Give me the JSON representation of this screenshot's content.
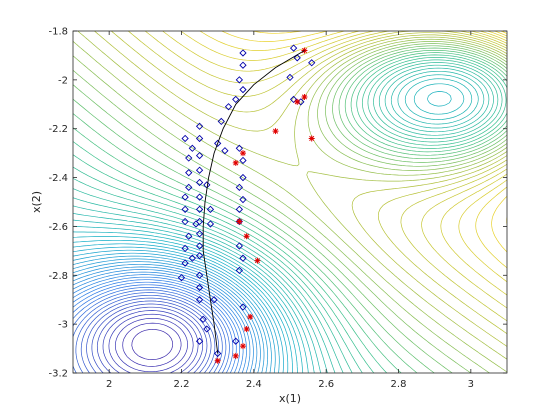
{
  "chart_data": {
    "type": "scatter",
    "title": "",
    "xlabel": "x(1)",
    "ylabel": "x(2)",
    "xlim": [
      1.9,
      3.1
    ],
    "ylim": [
      -3.2,
      -1.8
    ],
    "xticks": [
      "2",
      "2.2",
      "2.4",
      "2.6",
      "2.8",
      "3"
    ],
    "yticks": [
      "-1.8",
      "-2",
      "-2.2",
      "-2.4",
      "-2.6",
      "-2.8",
      "-3",
      "-3.2"
    ],
    "grid": false,
    "legend": "none",
    "background": "contour",
    "colors": {
      "markers_blue": "#0000aa",
      "markers_red": "#e00000",
      "curve": "#000000",
      "axes": "#262626"
    },
    "series": [
      {
        "marker": "diamond",
        "points": [
          [
            2.37,
            -1.89
          ],
          [
            2.37,
            -1.94
          ],
          [
            2.36,
            -2.0
          ],
          [
            2.37,
            -2.04
          ],
          [
            2.35,
            -2.08
          ],
          [
            2.33,
            -2.11
          ],
          [
            2.31,
            -2.17
          ],
          [
            2.3,
            -2.26
          ],
          [
            2.32,
            -2.29
          ],
          [
            2.36,
            -2.28
          ],
          [
            2.37,
            -2.33
          ],
          [
            2.37,
            -2.4
          ],
          [
            2.36,
            -2.44
          ],
          [
            2.37,
            -2.49
          ],
          [
            2.36,
            -2.53
          ],
          [
            2.36,
            -2.58
          ],
          [
            2.36,
            -2.68
          ],
          [
            2.37,
            -2.73
          ],
          [
            2.36,
            -2.78
          ],
          [
            2.37,
            -2.93
          ],
          [
            2.35,
            -3.07
          ],
          [
            2.3,
            -3.12
          ],
          [
            2.25,
            -3.07
          ],
          [
            2.27,
            -3.02
          ],
          [
            2.26,
            -2.98
          ],
          [
            2.25,
            -2.9
          ],
          [
            2.25,
            -2.85
          ],
          [
            2.25,
            -2.8
          ],
          [
            2.25,
            -2.72
          ],
          [
            2.25,
            -2.68
          ],
          [
            2.25,
            -2.63
          ],
          [
            2.25,
            -2.58
          ],
          [
            2.25,
            -2.53
          ],
          [
            2.25,
            -2.48
          ],
          [
            2.25,
            -2.42
          ],
          [
            2.25,
            -2.37
          ],
          [
            2.25,
            -2.31
          ],
          [
            2.25,
            -2.24
          ],
          [
            2.25,
            -2.19
          ],
          [
            2.21,
            -2.24
          ],
          [
            2.23,
            -2.28
          ],
          [
            2.22,
            -2.32
          ],
          [
            2.22,
            -2.38
          ],
          [
            2.22,
            -2.44
          ],
          [
            2.21,
            -2.48
          ],
          [
            2.21,
            -2.53
          ],
          [
            2.21,
            -2.58
          ],
          [
            2.24,
            -2.59
          ],
          [
            2.22,
            -2.64
          ],
          [
            2.21,
            -2.69
          ],
          [
            2.21,
            -2.75
          ],
          [
            2.2,
            -2.81
          ],
          [
            2.27,
            -2.43
          ],
          [
            2.28,
            -2.53
          ],
          [
            2.28,
            -2.59
          ],
          [
            2.23,
            -2.73
          ],
          [
            2.29,
            -2.9
          ],
          [
            2.51,
            -1.87
          ],
          [
            2.52,
            -1.91
          ],
          [
            2.56,
            -1.93
          ],
          [
            2.5,
            -1.99
          ],
          [
            2.51,
            -2.08
          ],
          [
            2.53,
            -2.09
          ]
        ]
      },
      {
        "marker": "asterisk",
        "points": [
          [
            2.54,
            -1.88
          ],
          [
            2.52,
            -2.09
          ],
          [
            2.54,
            -2.07
          ],
          [
            2.46,
            -2.21
          ],
          [
            2.56,
            -2.24
          ],
          [
            2.37,
            -2.3
          ],
          [
            2.35,
            -2.34
          ],
          [
            2.36,
            -2.58
          ],
          [
            2.38,
            -2.64
          ],
          [
            2.41,
            -2.74
          ],
          [
            2.39,
            -2.97
          ],
          [
            2.38,
            -3.02
          ],
          [
            2.37,
            -3.09
          ],
          [
            2.35,
            -3.13
          ],
          [
            2.3,
            -3.15
          ]
        ]
      },
      {
        "marker": "line",
        "points": [
          [
            2.3,
            -3.12
          ],
          [
            2.29,
            -3.0
          ],
          [
            2.28,
            -2.9
          ],
          [
            2.27,
            -2.8
          ],
          [
            2.26,
            -2.7
          ],
          [
            2.26,
            -2.6
          ],
          [
            2.265,
            -2.5
          ],
          [
            2.275,
            -2.4
          ],
          [
            2.29,
            -2.3
          ],
          [
            2.315,
            -2.2
          ],
          [
            2.35,
            -2.1
          ],
          [
            2.4,
            -2.02
          ],
          [
            2.46,
            -1.95
          ],
          [
            2.54,
            -1.88
          ]
        ]
      }
    ]
  }
}
